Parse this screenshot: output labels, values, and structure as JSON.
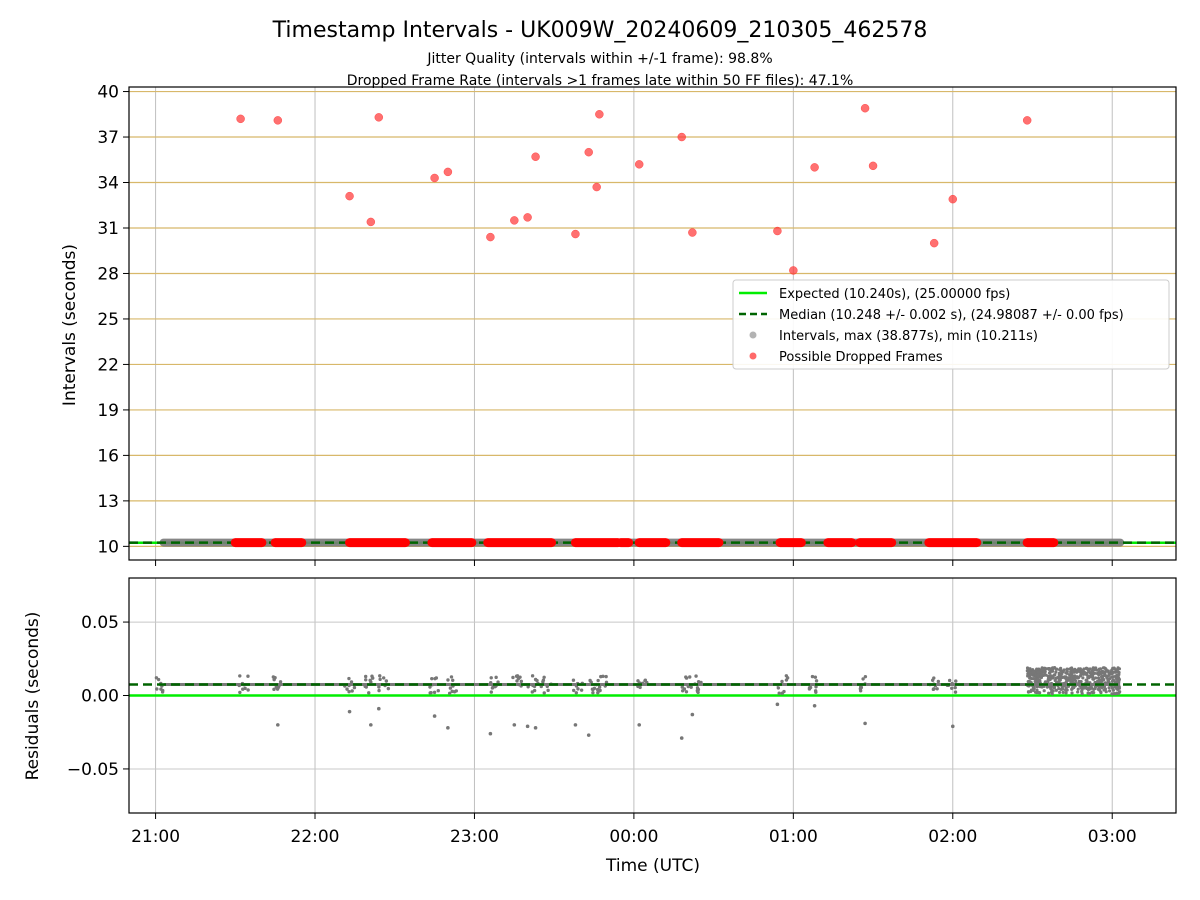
{
  "figure": {
    "title": "Timestamp Intervals - UK009W_20240609_210305_462578",
    "subtitle_1": "Jitter Quality (intervals within +/-1 frame): 98.8%",
    "subtitle_2": "Dropped Frame Rate (intervals >1 frames late within 50 FF files): 47.1%"
  },
  "chart_data": [
    {
      "type": "scatter",
      "panel": "top",
      "ylabel": "Intervals (seconds)",
      "ylim": [
        9.1,
        40.3
      ],
      "yticks": [
        10,
        13,
        16,
        19,
        22,
        25,
        28,
        31,
        34,
        37,
        40
      ],
      "ytick_labels": [
        "10",
        "13",
        "16",
        "19",
        "22",
        "25",
        "28",
        "31",
        "34",
        "37",
        "40"
      ],
      "xlim": [
        "20:50",
        "03:24"
      ],
      "xticks": [
        "21:00",
        "22:00",
        "23:00",
        "00:00",
        "01:00",
        "02:00",
        "03:00"
      ],
      "grid": true,
      "horizontal_gridlines_color": "#d8b86a",
      "legend_position": "center-right",
      "legend": [
        {
          "label": "Expected (10.240s), (25.00000 fps)",
          "style": "line",
          "color": "#00ee00"
        },
        {
          "label": "Median (10.248 +/- 0.002 s), (24.98087 +/- 0.00 fps)",
          "style": "dashed",
          "color": "#006400"
        },
        {
          "label": "Intervals, max (38.877s), min (10.211s)",
          "style": "dot",
          "color": "#a0a0a0"
        },
        {
          "label": "Possible Dropped Frames",
          "style": "dot",
          "color": "#ff4444"
        }
      ],
      "expected_line": 10.24,
      "median_line": 10.248,
      "intervals_range": {
        "start": "21:03",
        "end": "03:03",
        "value": 10.248
      },
      "dropped_frame_bands": [
        [
          "21:30",
          "21:40"
        ],
        [
          "21:45",
          "21:55"
        ],
        [
          "22:13",
          "22:34"
        ],
        [
          "22:44",
          "22:59"
        ],
        [
          "23:05",
          "23:29"
        ],
        [
          "23:38",
          "23:54"
        ],
        [
          "23:55",
          "23:58"
        ],
        [
          "00:02",
          "00:12"
        ],
        [
          "00:18",
          "00:32"
        ],
        [
          "00:55",
          "01:03"
        ],
        [
          "01:13",
          "01:22"
        ],
        [
          "01:25",
          "01:37"
        ],
        [
          "01:51",
          "02:09"
        ],
        [
          "02:28",
          "02:38"
        ]
      ],
      "dropped_frames": [
        {
          "x": "21:32",
          "y": 38.2
        },
        {
          "x": "21:46",
          "y": 38.1
        },
        {
          "x": "22:13",
          "y": 33.1
        },
        {
          "x": "22:21",
          "y": 31.4
        },
        {
          "x": "22:24",
          "y": 38.3
        },
        {
          "x": "22:45",
          "y": 34.3
        },
        {
          "x": "22:50",
          "y": 34.7
        },
        {
          "x": "23:06",
          "y": 30.4
        },
        {
          "x": "23:15",
          "y": 31.5
        },
        {
          "x": "23:20",
          "y": 31.7
        },
        {
          "x": "23:23",
          "y": 35.7
        },
        {
          "x": "23:38",
          "y": 30.6
        },
        {
          "x": "23:43",
          "y": 36.0
        },
        {
          "x": "23:46",
          "y": 33.7
        },
        {
          "x": "23:47",
          "y": 38.5
        },
        {
          "x": "00:02",
          "y": 35.2
        },
        {
          "x": "00:18",
          "y": 37.0
        },
        {
          "x": "00:22",
          "y": 30.7
        },
        {
          "x": "00:54",
          "y": 30.8
        },
        {
          "x": "01:00",
          "y": 28.2
        },
        {
          "x": "01:08",
          "y": 35.0
        },
        {
          "x": "01:27",
          "y": 38.9
        },
        {
          "x": "01:30",
          "y": 35.1
        },
        {
          "x": "01:53",
          "y": 30.0
        },
        {
          "x": "02:00",
          "y": 32.9
        },
        {
          "x": "02:28",
          "y": 38.1
        }
      ]
    },
    {
      "type": "scatter",
      "panel": "bottom",
      "xlabel": "Time (UTC)",
      "ylabel": "Residuals (seconds)",
      "ylim": [
        -0.08,
        0.08
      ],
      "yticks": [
        -0.05,
        0.0,
        0.05
      ],
      "ytick_labels": [
        "−0.05",
        "0.00",
        "0.05"
      ],
      "xlim": [
        "20:50",
        "03:24"
      ],
      "xticks": [
        "21:00",
        "22:00",
        "23:00",
        "00:00",
        "01:00",
        "02:00",
        "03:00"
      ],
      "xtick_labels": [
        "21:00",
        "22:00",
        "23:00",
        "00:00",
        "01:00",
        "02:00",
        "03:00"
      ],
      "grid": true,
      "expected_line": 0.0,
      "median_line": 0.0075,
      "residual_range": {
        "start": "21:03",
        "end": "03:03",
        "value": 0.0075
      },
      "residual_outliers": [
        {
          "x": "21:46",
          "y": -0.02
        },
        {
          "x": "22:13",
          "y": -0.011
        },
        {
          "x": "22:21",
          "y": -0.02
        },
        {
          "x": "22:24",
          "y": -0.009
        },
        {
          "x": "22:45",
          "y": -0.014
        },
        {
          "x": "22:50",
          "y": -0.022
        },
        {
          "x": "23:06",
          "y": -0.026
        },
        {
          "x": "23:15",
          "y": -0.02
        },
        {
          "x": "23:20",
          "y": -0.021
        },
        {
          "x": "23:23",
          "y": -0.022
        },
        {
          "x": "23:38",
          "y": -0.02
        },
        {
          "x": "23:43",
          "y": -0.027
        },
        {
          "x": "00:02",
          "y": -0.02
        },
        {
          "x": "00:18",
          "y": -0.029
        },
        {
          "x": "00:22",
          "y": -0.013
        },
        {
          "x": "00:54",
          "y": -0.006
        },
        {
          "x": "01:08",
          "y": -0.007
        },
        {
          "x": "01:27",
          "y": -0.019
        },
        {
          "x": "02:00",
          "y": -0.021
        }
      ],
      "residual_clusters": [
        "21:02",
        "21:33",
        "21:46",
        "22:13",
        "22:20",
        "22:26",
        "22:45",
        "22:52",
        "23:08",
        "23:16",
        "23:22",
        "23:27",
        "23:39",
        "23:45",
        "23:48",
        "24:03",
        "24:20",
        "24:24",
        "24:56",
        "25:08",
        "25:27",
        "25:53",
        "26:00"
      ],
      "dense_residual_block": {
        "start": "02:28",
        "end": "03:03",
        "y_min": 0.0,
        "y_max": 0.018
      }
    }
  ]
}
